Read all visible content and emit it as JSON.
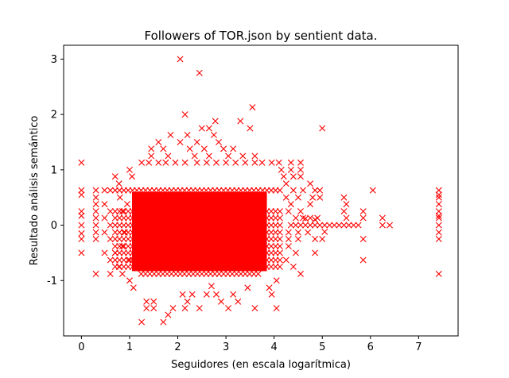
{
  "chart_data": {
    "type": "scatter",
    "title": "Followers of TOR.json by sentient data.",
    "xlabel": "Seguidores (en escala logarítmica)",
    "ylabel": "Resultado análisis semántico",
    "xlim": [
      -0.37,
      7.82
    ],
    "ylim": [
      -2.0,
      3.25
    ],
    "xticks": [
      0,
      1,
      2,
      3,
      4,
      5,
      6,
      7
    ],
    "yticks": [
      -1,
      0,
      1,
      2,
      3
    ],
    "ytick_labels": [
      "-1",
      "0",
      "1",
      "2",
      "3"
    ],
    "marker": "x",
    "color": "#ff0000",
    "grid": false,
    "dense_core": {
      "x_range": [
        0.7,
        4.2
      ],
      "y_range": [
        -0.88,
        0.65
      ]
    },
    "points": [
      [
        0.0,
        1.13
      ],
      [
        0.0,
        0.63
      ],
      [
        0.0,
        0.55
      ],
      [
        0.0,
        0.25
      ],
      [
        0.0,
        0.17
      ],
      [
        0.0,
        0.0
      ],
      [
        0.0,
        -0.15
      ],
      [
        0.0,
        -0.25
      ],
      [
        0.0,
        -0.5
      ],
      [
        0.3,
        0.63
      ],
      [
        0.3,
        0.5
      ],
      [
        0.3,
        0.38
      ],
      [
        0.3,
        0.25
      ],
      [
        0.3,
        0.13
      ],
      [
        0.3,
        0.0
      ],
      [
        0.3,
        -0.13
      ],
      [
        0.3,
        -0.25
      ],
      [
        0.3,
        -0.88
      ],
      [
        0.48,
        0.63
      ],
      [
        0.48,
        0.38
      ],
      [
        0.48,
        0.13
      ],
      [
        0.48,
        -0.13
      ],
      [
        0.48,
        -0.5
      ],
      [
        0.6,
        0.63
      ],
      [
        0.6,
        0.25
      ],
      [
        0.6,
        0.0
      ],
      [
        0.6,
        -0.25
      ],
      [
        0.6,
        -0.63
      ],
      [
        0.6,
        -0.88
      ],
      [
        0.7,
        0.88
      ],
      [
        0.78,
        0.75
      ],
      [
        0.7,
        -0.5
      ],
      [
        0.78,
        -0.75
      ],
      [
        0.85,
        -0.88
      ],
      [
        1.0,
        1.0
      ],
      [
        1.05,
        0.88
      ],
      [
        1.0,
        -1.0
      ],
      [
        1.08,
        -1.13
      ],
      [
        1.35,
        -1.38
      ],
      [
        1.35,
        -1.5
      ],
      [
        1.25,
        -1.75
      ],
      [
        1.5,
        -1.38
      ],
      [
        1.5,
        -1.5
      ],
      [
        1.7,
        -1.75
      ],
      [
        1.8,
        -1.62
      ],
      [
        1.9,
        -1.5
      ],
      [
        2.15,
        -1.5
      ],
      [
        2.2,
        -1.38
      ],
      [
        2.45,
        -1.5
      ],
      [
        2.1,
        -1.25
      ],
      [
        2.3,
        -1.25
      ],
      [
        2.6,
        -1.25
      ],
      [
        2.8,
        -1.25
      ],
      [
        2.9,
        -1.38
      ],
      [
        3.05,
        -1.5
      ],
      [
        3.15,
        -1.25
      ],
      [
        3.25,
        -1.38
      ],
      [
        3.45,
        -1.13
      ],
      [
        2.7,
        -1.1
      ],
      [
        3.6,
        -1.5
      ],
      [
        4.05,
        -1.5
      ],
      [
        3.95,
        -1.25
      ],
      [
        3.9,
        -1.13
      ],
      [
        4.05,
        -1.0
      ],
      [
        4.55,
        -0.88
      ],
      [
        1.45,
        1.25
      ],
      [
        1.45,
        1.38
      ],
      [
        1.6,
        1.5
      ],
      [
        1.7,
        1.38
      ],
      [
        1.8,
        1.25
      ],
      [
        1.85,
        1.63
      ],
      [
        2.05,
        1.5
      ],
      [
        2.2,
        1.63
      ],
      [
        2.25,
        1.38
      ],
      [
        2.35,
        1.25
      ],
      [
        2.5,
        1.75
      ],
      [
        2.4,
        1.5
      ],
      [
        2.55,
        1.38
      ],
      [
        2.65,
        1.75
      ],
      [
        2.75,
        1.63
      ],
      [
        2.65,
        1.25
      ],
      [
        2.85,
        1.5
      ],
      [
        2.78,
        1.88
      ],
      [
        2.95,
        1.38
      ],
      [
        3.05,
        1.25
      ],
      [
        3.15,
        1.38
      ],
      [
        3.3,
        1.88
      ],
      [
        3.5,
        1.75
      ],
      [
        3.55,
        2.13
      ],
      [
        3.35,
        1.25
      ],
      [
        3.6,
        1.25
      ],
      [
        2.15,
        2.0
      ],
      [
        2.05,
        3.0
      ],
      [
        2.45,
        2.75
      ],
      [
        1.25,
        1.13
      ],
      [
        1.4,
        1.13
      ],
      [
        1.6,
        1.13
      ],
      [
        1.75,
        1.13
      ],
      [
        1.95,
        1.13
      ],
      [
        2.15,
        1.13
      ],
      [
        2.4,
        1.13
      ],
      [
        2.6,
        1.13
      ],
      [
        2.8,
        1.13
      ],
      [
        3.0,
        1.13
      ],
      [
        3.2,
        1.13
      ],
      [
        3.4,
        1.13
      ],
      [
        3.6,
        1.13
      ],
      [
        3.75,
        1.13
      ],
      [
        3.95,
        1.13
      ],
      [
        4.1,
        1.13
      ],
      [
        4.35,
        1.13
      ],
      [
        4.35,
        1.0
      ],
      [
        4.15,
        1.0
      ],
      [
        4.55,
        1.13
      ],
      [
        4.55,
        1.0
      ],
      [
        4.2,
        0.88
      ],
      [
        4.4,
        0.88
      ],
      [
        4.55,
        0.88
      ],
      [
        4.75,
        0.75
      ],
      [
        4.85,
        0.63
      ],
      [
        4.95,
        0.63
      ],
      [
        4.95,
        0.5
      ],
      [
        4.8,
        0.5
      ],
      [
        4.6,
        0.63
      ],
      [
        4.4,
        0.63
      ],
      [
        4.25,
        0.75
      ],
      [
        4.25,
        0.5
      ],
      [
        4.5,
        0.5
      ],
      [
        4.75,
        0.38
      ],
      [
        4.35,
        0.38
      ],
      [
        4.3,
        0.25
      ],
      [
        4.55,
        0.25
      ],
      [
        4.45,
        0.13
      ],
      [
        4.6,
        0.13
      ],
      [
        4.75,
        0.13
      ],
      [
        4.9,
        0.13
      ],
      [
        4.3,
        -0.13
      ],
      [
        4.5,
        -0.13
      ],
      [
        4.7,
        -0.13
      ],
      [
        4.3,
        -0.25
      ],
      [
        4.5,
        -0.25
      ],
      [
        4.3,
        -0.38
      ],
      [
        4.45,
        -0.5
      ],
      [
        4.25,
        -0.63
      ],
      [
        4.4,
        -0.75
      ],
      [
        4.85,
        -0.5
      ],
      [
        4.85,
        -0.25
      ],
      [
        4.35,
        0.0
      ],
      [
        4.45,
        0.0
      ],
      [
        4.55,
        0.0
      ],
      [
        4.65,
        0.0
      ],
      [
        4.75,
        0.0
      ],
      [
        4.85,
        0.0
      ],
      [
        4.95,
        0.0
      ],
      [
        5.05,
        0.0
      ],
      [
        5.15,
        0.0
      ],
      [
        5.25,
        0.0
      ],
      [
        5.35,
        0.0
      ],
      [
        5.45,
        0.0
      ],
      [
        5.55,
        0.0
      ],
      [
        5.65,
        0.0
      ],
      [
        5.75,
        0.0
      ],
      [
        4.65,
        0.12
      ],
      [
        4.85,
        0.1
      ],
      [
        5.05,
        -0.12
      ],
      [
        5.0,
        -0.25
      ],
      [
        5.0,
        1.75
      ],
      [
        5.45,
        0.5
      ],
      [
        5.5,
        0.38
      ],
      [
        5.45,
        0.25
      ],
      [
        5.5,
        0.13
      ],
      [
        5.85,
        0.25
      ],
      [
        5.85,
        0.13
      ],
      [
        5.85,
        -0.25
      ],
      [
        5.85,
        -0.63
      ],
      [
        6.05,
        0.63
      ],
      [
        6.25,
        0.13
      ],
      [
        6.25,
        0.0
      ],
      [
        6.4,
        0.0
      ],
      [
        7.42,
        0.63
      ],
      [
        7.42,
        0.55
      ],
      [
        7.42,
        0.5
      ],
      [
        7.42,
        0.38
      ],
      [
        7.42,
        0.25
      ],
      [
        7.42,
        0.17
      ],
      [
        7.42,
        0.13
      ],
      [
        7.42,
        0.0
      ],
      [
        7.42,
        -0.13
      ],
      [
        7.42,
        -0.25
      ],
      [
        7.42,
        -0.88
      ],
      [
        1.2,
        -0.5
      ],
      [
        1.2,
        -0.63
      ],
      [
        1.0,
        -0.63
      ],
      [
        0.85,
        -0.38
      ],
      [
        0.9,
        -0.13
      ],
      [
        0.95,
        0.38
      ],
      [
        0.85,
        0.25
      ],
      [
        0.8,
        0.5
      ]
    ]
  }
}
